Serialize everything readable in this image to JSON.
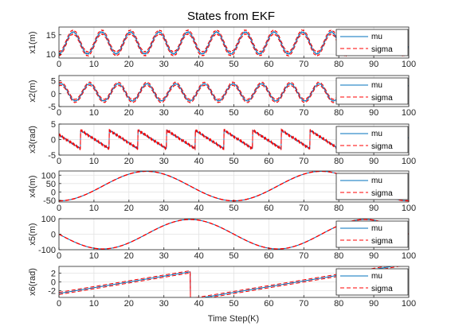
{
  "chart_data": {
    "type": "line",
    "title": "States from EKF",
    "xlabel": "Time Step(K)",
    "xlim": [
      0,
      100
    ],
    "xticks": [
      0,
      10,
      20,
      30,
      40,
      50,
      60,
      70,
      80,
      90,
      100
    ],
    "grid": true,
    "legend_position": "right",
    "colors": {
      "mu": "#0072bd",
      "sigma": "#ff0000"
    },
    "subplots": [
      {
        "ylabel": "x1(m)",
        "ylim": [
          9,
          17
        ],
        "yticks": [
          10,
          15
        ],
        "legend": [
          "mu",
          "sigma"
        ],
        "series": [
          {
            "name": "mu",
            "function": "12.9 + 2.8*sin(2*pi*(x-2)/8.2)"
          },
          {
            "name": "sigma",
            "function": "mu ± 0.5"
          }
        ]
      },
      {
        "ylabel": "x2(m)",
        "ylim": [
          -5,
          7
        ],
        "yticks": [
          -5,
          0,
          5
        ],
        "legend": [
          "mu",
          "sigma"
        ],
        "series": [
          {
            "name": "mu",
            "function": "0.5 + 3.3*sin(2*pi*(x+1.5)/8.2)"
          },
          {
            "name": "sigma",
            "function": "mu ± 0.6"
          }
        ]
      },
      {
        "ylabel": "x3(rad)",
        "ylim": [
          -5,
          5
        ],
        "yticks": [
          -5,
          0,
          5
        ],
        "legend": [
          "mu",
          "sigma"
        ],
        "series": [
          {
            "name": "mu",
            "function": "sawtooth from 3 to -3, period 8.2, starting at x=-2"
          },
          {
            "name": "sigma",
            "function": "mu ± 0.2"
          }
        ]
      },
      {
        "ylabel": "x4(m)",
        "ylim": [
          -60,
          125
        ],
        "yticks": [
          -50,
          0,
          50,
          100
        ],
        "legend": [
          "mu",
          "sigma"
        ],
        "series": [
          {
            "name": "mu",
            "function": "35 - 88*cos(2*pi*x/50)"
          },
          {
            "name": "sigma",
            "function": "mu ± 1"
          }
        ]
      },
      {
        "ylabel": "x5(m)",
        "ylim": [
          -100,
          100
        ],
        "yticks": [
          -100,
          0,
          100
        ],
        "legend": [
          "mu",
          "sigma"
        ],
        "series": [
          {
            "name": "mu",
            "function": "-95*sin(2*pi*x/50)"
          },
          {
            "name": "sigma",
            "function": "mu ± 1"
          }
        ]
      },
      {
        "ylabel": "x6(rad)",
        "ylim": [
          -3.5,
          3.5
        ],
        "yticks": [
          -2,
          0,
          2
        ],
        "legend": [
          "mu",
          "sigma"
        ],
        "series": [
          {
            "name": "mu",
            "function": "-2.6 + 0.13*x, wraps by 2*pi near x=37.5"
          },
          {
            "name": "sigma",
            "function": "mu ± 0.25"
          }
        ]
      }
    ]
  }
}
